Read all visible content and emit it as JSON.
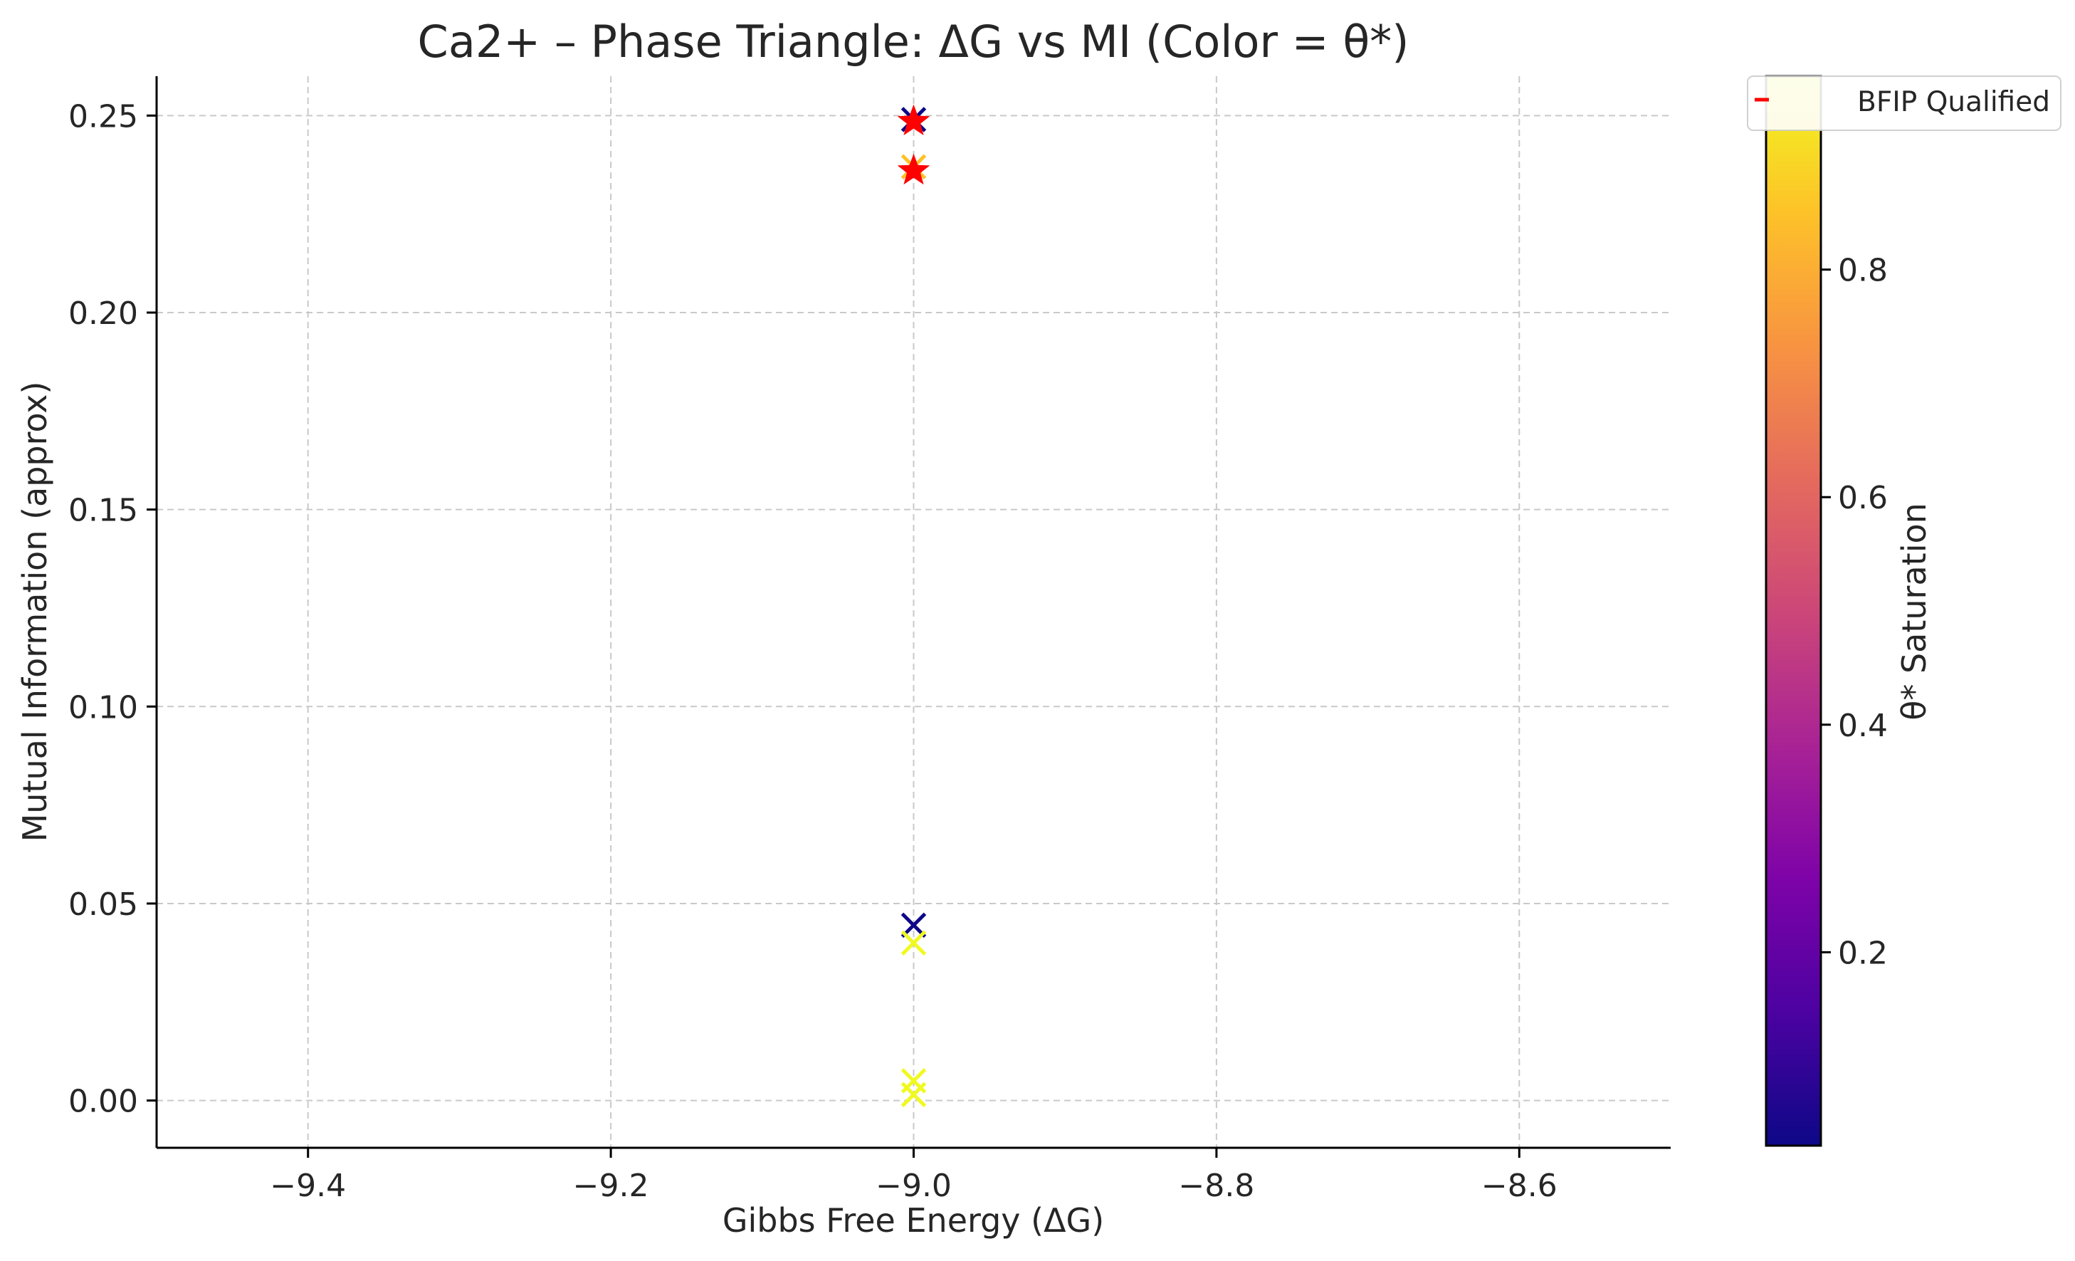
{
  "chart_data": {
    "type": "scatter",
    "title": "Ca2+ – Phase Triangle: ΔG vs MI (Color = θ*)",
    "xlabel": "Gibbs Free Energy (ΔG)",
    "ylabel": "Mutual Information (approx)",
    "xlim": [
      -9.5,
      -8.5
    ],
    "ylim": [
      -0.012,
      0.26
    ],
    "xticks": [
      -9.4,
      -9.2,
      -9.0,
      -8.8,
      -8.6
    ],
    "xtick_labels": [
      "−9.4",
      "−9.2",
      "−9.0",
      "−8.8",
      "−8.6"
    ],
    "yticks": [
      0.0,
      0.05,
      0.1,
      0.15,
      0.2,
      0.25
    ],
    "ytick_labels": [
      "0.00",
      "0.05",
      "0.10",
      "0.15",
      "0.20",
      "0.25"
    ],
    "grid": true,
    "colormap": "plasma",
    "colorbar": {
      "label": "θ* Saturation",
      "range": [
        0.03,
        0.97
      ],
      "ticks": [
        0.2,
        0.4,
        0.6,
        0.8
      ],
      "tick_labels": [
        "0.2",
        "0.4",
        "0.6",
        "0.8"
      ]
    },
    "legend": {
      "position": "top-right",
      "entries": [
        "BFIP Qualified"
      ],
      "marker_color": "#ff0000"
    },
    "points": [
      {
        "x": -9.0,
        "y": 0.249,
        "theta": 0.03,
        "marker": "x"
      },
      {
        "x": -9.0,
        "y": 0.237,
        "theta": 0.85,
        "marker": "x"
      },
      {
        "x": -9.0,
        "y": 0.0445,
        "theta": 0.03,
        "marker": "x"
      },
      {
        "x": -9.0,
        "y": 0.04,
        "theta": 0.97,
        "marker": "x"
      },
      {
        "x": -9.0,
        "y": 0.005,
        "theta": 0.97,
        "marker": "x"
      },
      {
        "x": -9.0,
        "y": 0.0015,
        "theta": 0.97,
        "marker": "x"
      }
    ],
    "bfip_qualified": [
      {
        "x": -9.0,
        "y": 0.2485
      },
      {
        "x": -9.0,
        "y": 0.236
      }
    ]
  }
}
